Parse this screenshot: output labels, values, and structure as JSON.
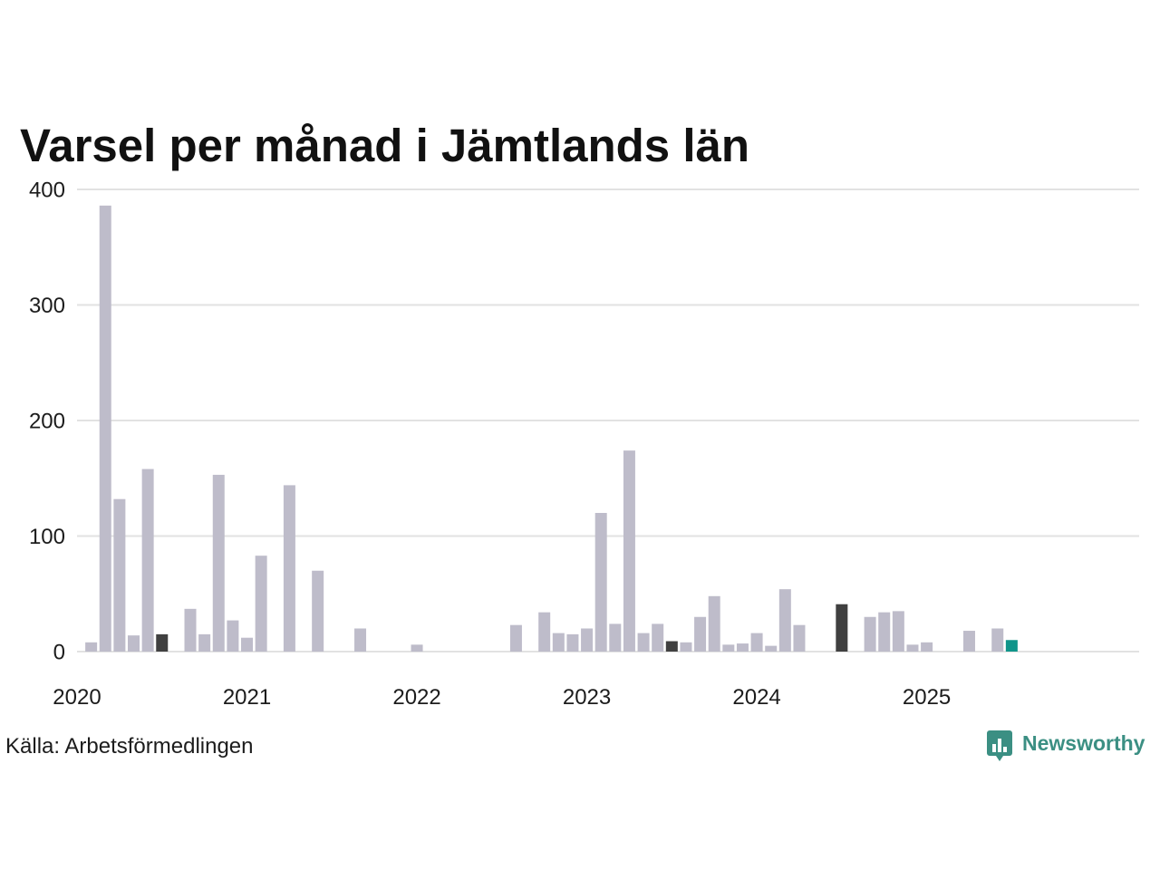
{
  "chart_data": {
    "type": "bar",
    "title": "Varsel per månad i Jämtlands län",
    "xlabel": "",
    "ylabel": "",
    "xlim": [
      "2020-01",
      "2026-04"
    ],
    "ylim": [
      0,
      400
    ],
    "yticks": [
      0,
      100,
      200,
      300,
      400
    ],
    "xticks": [
      "2020",
      "2021",
      "2022",
      "2023",
      "2024",
      "2025"
    ],
    "grid": true,
    "bar_color": "#bebcca",
    "highlight_colors": {
      "2020-07": "#404040",
      "2021-07": "#404040",
      "2022-07": "#404040",
      "2023-07": "#404040",
      "2024-07": "#404040",
      "2025-07": "#10958a"
    },
    "x": [
      "2020-01",
      "2020-02",
      "2020-03",
      "2020-04",
      "2020-05",
      "2020-06",
      "2020-07",
      "2020-08",
      "2020-09",
      "2020-10",
      "2020-11",
      "2020-12",
      "2021-01",
      "2021-02",
      "2021-03",
      "2021-04",
      "2021-05",
      "2021-06",
      "2021-07",
      "2021-08",
      "2021-09",
      "2021-10",
      "2021-11",
      "2021-12",
      "2022-01",
      "2022-02",
      "2022-03",
      "2022-04",
      "2022-05",
      "2022-06",
      "2022-07",
      "2022-08",
      "2022-09",
      "2022-10",
      "2022-11",
      "2022-12",
      "2023-01",
      "2023-02",
      "2023-03",
      "2023-04",
      "2023-05",
      "2023-06",
      "2023-07",
      "2023-08",
      "2023-09",
      "2023-10",
      "2023-11",
      "2023-12",
      "2024-01",
      "2024-02",
      "2024-03",
      "2024-04",
      "2024-05",
      "2024-06",
      "2024-07",
      "2024-08",
      "2024-09",
      "2024-10",
      "2024-11",
      "2024-12",
      "2025-01",
      "2025-02",
      "2025-03",
      "2025-04",
      "2025-05",
      "2025-06",
      "2025-07"
    ],
    "values": [
      0,
      8,
      386,
      132,
      14,
      158,
      15,
      0,
      37,
      15,
      153,
      27,
      12,
      83,
      0,
      144,
      0,
      70,
      0,
      0,
      20,
      0,
      0,
      0,
      6,
      0,
      0,
      0,
      0,
      0,
      0,
      23,
      0,
      34,
      16,
      15,
      20,
      120,
      24,
      174,
      16,
      24,
      9,
      8,
      30,
      48,
      6,
      7,
      16,
      5,
      54,
      23,
      0,
      0,
      41,
      0,
      30,
      34,
      35,
      6,
      8,
      0,
      0,
      18,
      0,
      20,
      10
    ]
  },
  "source": "Källa: Arbetsförmedlingen",
  "logo": {
    "text": "Newsworthy",
    "icon": "newsworthy-logo-icon",
    "color": "#3b8f83"
  }
}
